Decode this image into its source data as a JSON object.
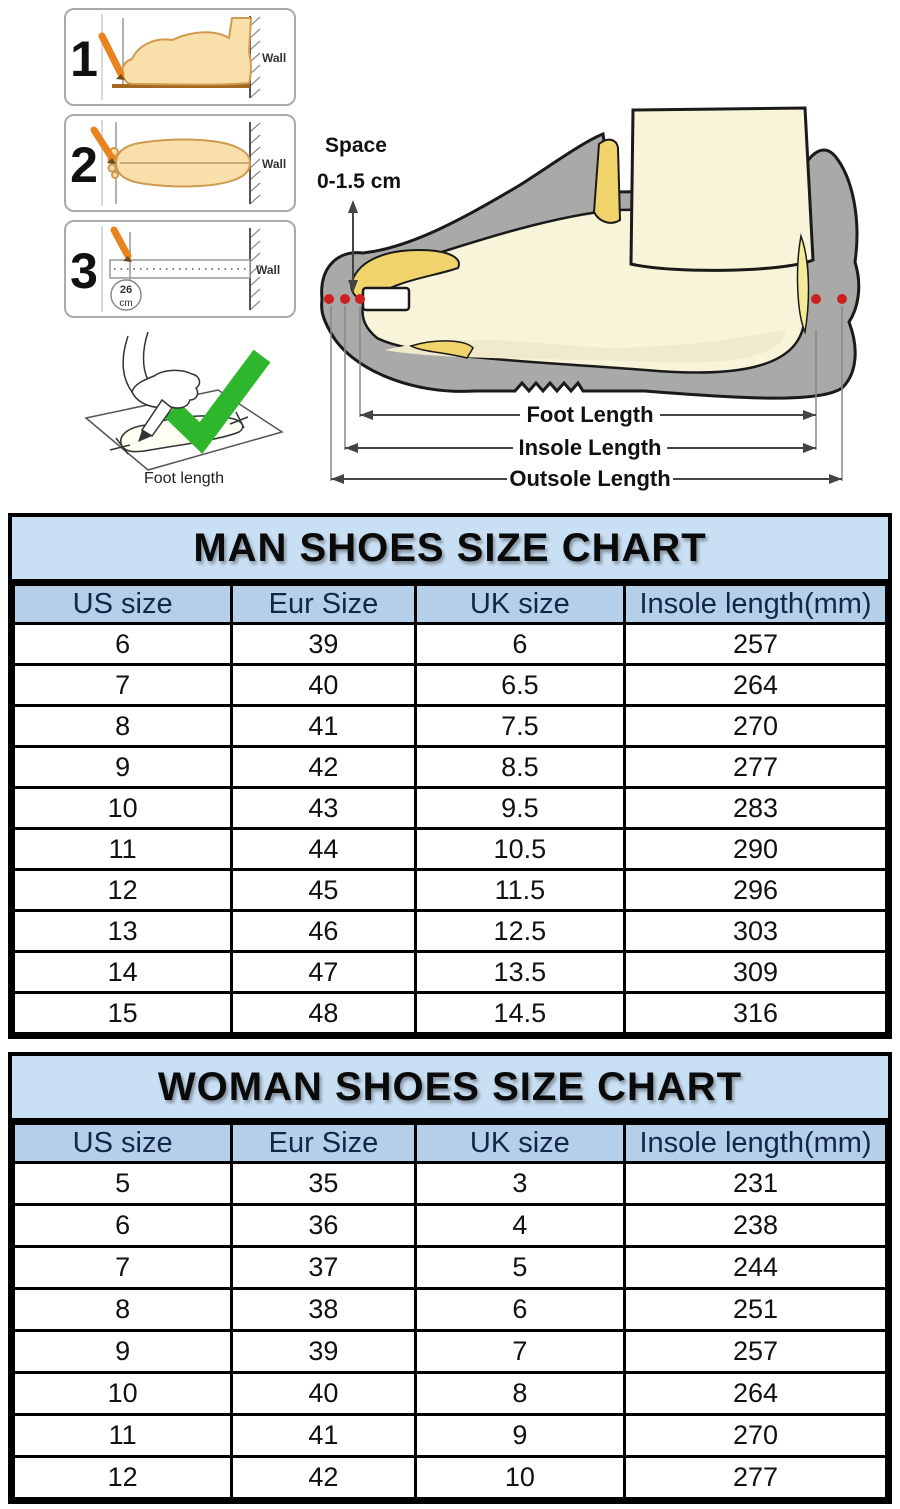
{
  "measure_guide": {
    "steps": [
      {
        "number": "1",
        "wall_label": "Wall"
      },
      {
        "number": "2",
        "wall_label": "Wall"
      },
      {
        "number": "3",
        "wall_label": "Wall",
        "ruler_value": "26",
        "ruler_unit": "cm"
      }
    ],
    "caption": "Foot length"
  },
  "shoe_diagram": {
    "space_label": "Space",
    "space_range": "0-1.5 cm",
    "dim_foot": "Foot Length",
    "dim_insole": "Insole Length",
    "dim_outsole": "Outsole Length"
  },
  "chart_data": [
    {
      "type": "table",
      "title": "MAN SHOES SIZE CHART",
      "columns": [
        "US size",
        "Eur Size",
        "UK size",
        "Insole length(mm)"
      ],
      "rows": [
        [
          "6",
          "39",
          "6",
          "257"
        ],
        [
          "7",
          "40",
          "6.5",
          "264"
        ],
        [
          "8",
          "41",
          "7.5",
          "270"
        ],
        [
          "9",
          "42",
          "8.5",
          "277"
        ],
        [
          "10",
          "43",
          "9.5",
          "283"
        ],
        [
          "11",
          "44",
          "10.5",
          "290"
        ],
        [
          "12",
          "45",
          "11.5",
          "296"
        ],
        [
          "13",
          "46",
          "12.5",
          "303"
        ],
        [
          "14",
          "47",
          "13.5",
          "309"
        ],
        [
          "15",
          "48",
          "14.5",
          "316"
        ]
      ]
    },
    {
      "type": "table",
      "title": "WOMAN SHOES SIZE CHART",
      "columns": [
        "US size",
        "Eur Size",
        "UK size",
        "Insole length(mm)"
      ],
      "rows": [
        [
          "5",
          "35",
          "3",
          "231"
        ],
        [
          "6",
          "36",
          "4",
          "238"
        ],
        [
          "7",
          "37",
          "5",
          "244"
        ],
        [
          "8",
          "38",
          "6",
          "251"
        ],
        [
          "9",
          "39",
          "7",
          "257"
        ],
        [
          "10",
          "40",
          "8",
          "264"
        ],
        [
          "11",
          "41",
          "9",
          "270"
        ],
        [
          "12",
          "42",
          "10",
          "277"
        ]
      ]
    }
  ],
  "colors": {
    "title_band": "#c9dff3",
    "header_band": "#b5cfe9",
    "header_text": "#13264a",
    "table_border": "#000000",
    "shoe_gray": "#a9a9a7",
    "shoe_cream": "#f8f4da",
    "shoe_yellow": "#f0d36a",
    "marker_red": "#cc2020",
    "check_green": "#2eb62c",
    "pencil_orange": "#e8831d"
  }
}
